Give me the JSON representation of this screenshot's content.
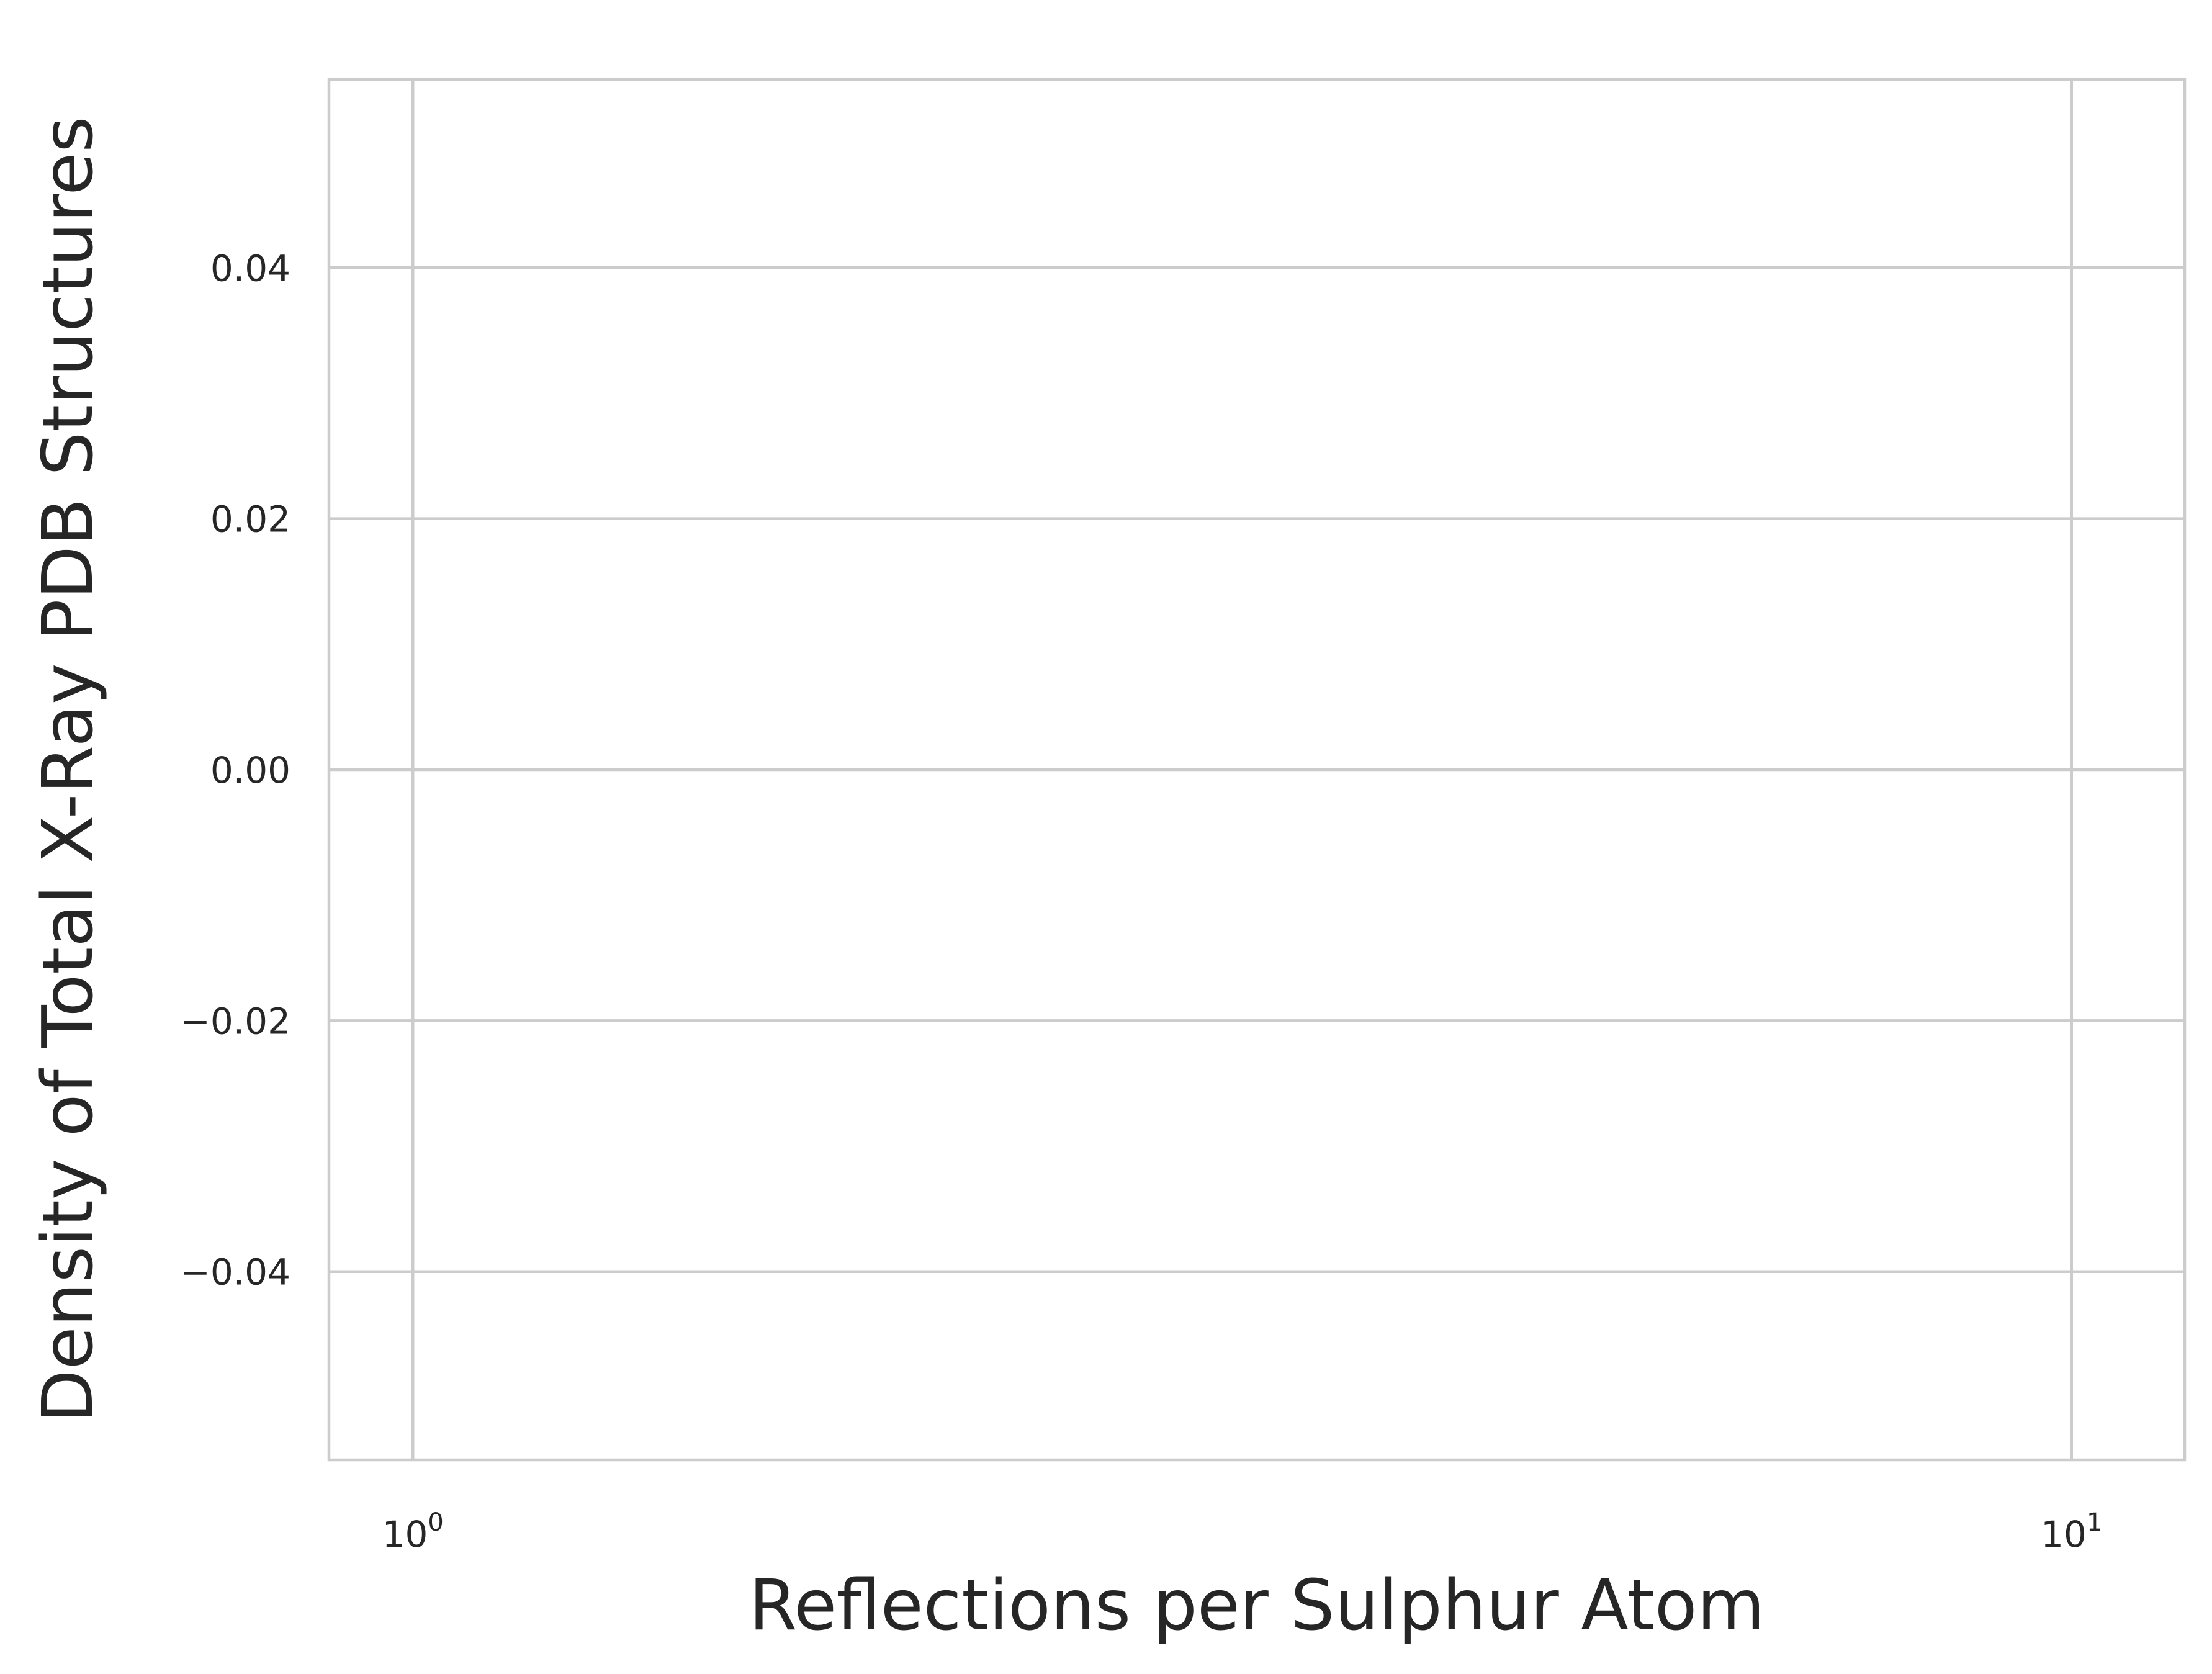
{
  "chart_data": {
    "type": "line",
    "title": "",
    "xlabel": "Reflections per Sulphur Atom",
    "ylabel": "Density of Total X-Ray PDB Structures",
    "x_scale": "log",
    "xlim": [
      0.89,
      11.7
    ],
    "ylim": [
      -0.055,
      0.055
    ],
    "x_ticks": [
      {
        "value": 1,
        "base": "10",
        "exponent": "0"
      },
      {
        "value": 10,
        "base": "10",
        "exponent": "1"
      }
    ],
    "y_ticks": [
      {
        "value": -0.04,
        "label": "−0.04"
      },
      {
        "value": -0.02,
        "label": "−0.02"
      },
      {
        "value": 0.0,
        "label": "0.00"
      },
      {
        "value": 0.02,
        "label": "0.02"
      },
      {
        "value": 0.04,
        "label": "0.04"
      }
    ],
    "grid": true,
    "series": []
  }
}
